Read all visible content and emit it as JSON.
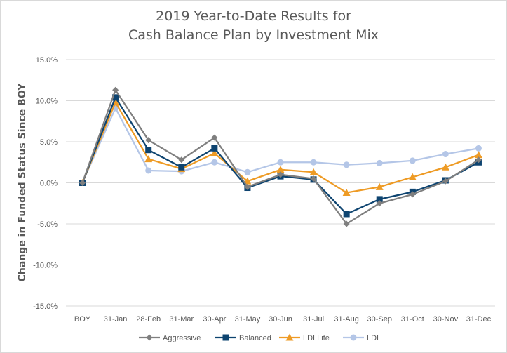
{
  "chart_data": {
    "type": "line",
    "title_line1": "2019 Year-to-Date Results for",
    "title_line2": "Cash Balance Plan by Investment Mix",
    "xlabel": "",
    "ylabel": "Change in Funded Status Since BOY",
    "categories": [
      "BOY",
      "31-Jan",
      "28-Feb",
      "31-Mar",
      "30-Apr",
      "31-May",
      "30-Jun",
      "31-Jul",
      "31-Aug",
      "30-Sep",
      "31-Oct",
      "30-Nov",
      "31-Dec"
    ],
    "ylim": [
      -15,
      15
    ],
    "yticks": [
      15,
      10,
      5,
      0,
      -5,
      -10,
      -15
    ],
    "ytick_labels": [
      "15.0%",
      "10.0%",
      "5.0%",
      "0.0%",
      "-5.0%",
      "-10.0%",
      "-15.0%"
    ],
    "grid": true,
    "legend_position": "bottom",
    "series": [
      {
        "name": "Aggressive",
        "color": "#7f7f7f",
        "marker": "diamond",
        "values": [
          0,
          11.3,
          5.2,
          2.8,
          5.5,
          -0.5,
          1.0,
          0.5,
          -5.0,
          -2.5,
          -1.4,
          0.2,
          2.8
        ]
      },
      {
        "name": "Balanced",
        "color": "#0e4470",
        "marker": "square",
        "values": [
          0,
          10.4,
          4.0,
          1.9,
          4.2,
          -0.6,
          0.8,
          0.4,
          -3.8,
          -2.0,
          -1.1,
          0.3,
          2.5
        ]
      },
      {
        "name": "LDI Lite",
        "color": "#ee9b25",
        "marker": "triangle",
        "values": [
          0,
          9.8,
          2.9,
          1.7,
          3.6,
          0.2,
          1.6,
          1.3,
          -1.2,
          -0.5,
          0.7,
          1.9,
          3.4
        ]
      },
      {
        "name": "LDI",
        "color": "#b4c6e7",
        "marker": "circle",
        "values": [
          0,
          9.1,
          1.5,
          1.4,
          2.5,
          1.3,
          2.5,
          2.5,
          2.2,
          2.4,
          2.7,
          3.5,
          4.2
        ]
      }
    ]
  }
}
